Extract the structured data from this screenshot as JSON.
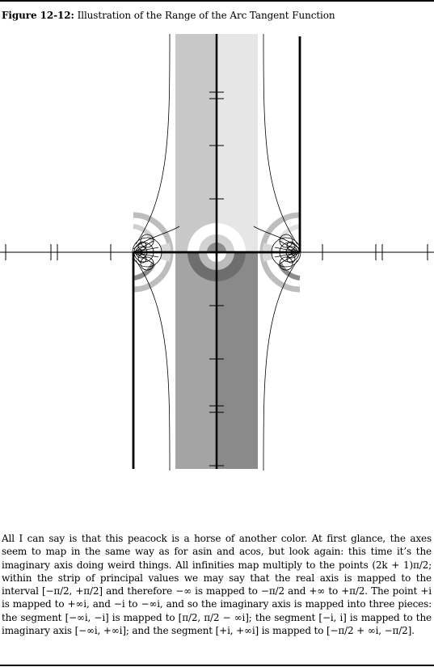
{
  "caption": {
    "label": "Figure 12-12:",
    "title": "Illustration of the Range of the Arc Tangent Function"
  },
  "paragraph": "All I can say is that this peacock is a horse of another color. At first glance, the axes seem to map in the same way as for asin and acos, but look again: this time it’s the imaginary axis doing weird things. All infinities map multiply to the points (2k + 1)π/2; within the strip of principal values we may say that the real axis is mapped to the interval [−π/2, +π/2] and therefore −∞ is mapped to −π/2 and +∞ to +π/2. The point +i is mapped to +∞i, and −i to −∞i, and so the imaginary axis is mapped into three pieces: the segment [−∞i, −i] is mapped to [π/2, π/2 − ∞i]; the segment [−i, i] is mapped to the imaginary axis [−∞i, +∞i]; and the segment [+i, +∞i] is mapped to [−π/2 + ∞i, −π/2].",
  "colors": {
    "quadrant_upper_left": "#c8c8c8",
    "quadrant_upper_right": "#e6e6e6",
    "quadrant_lower_left": "#a4a4a4",
    "quadrant_lower_right": "#8a8a8a"
  }
}
